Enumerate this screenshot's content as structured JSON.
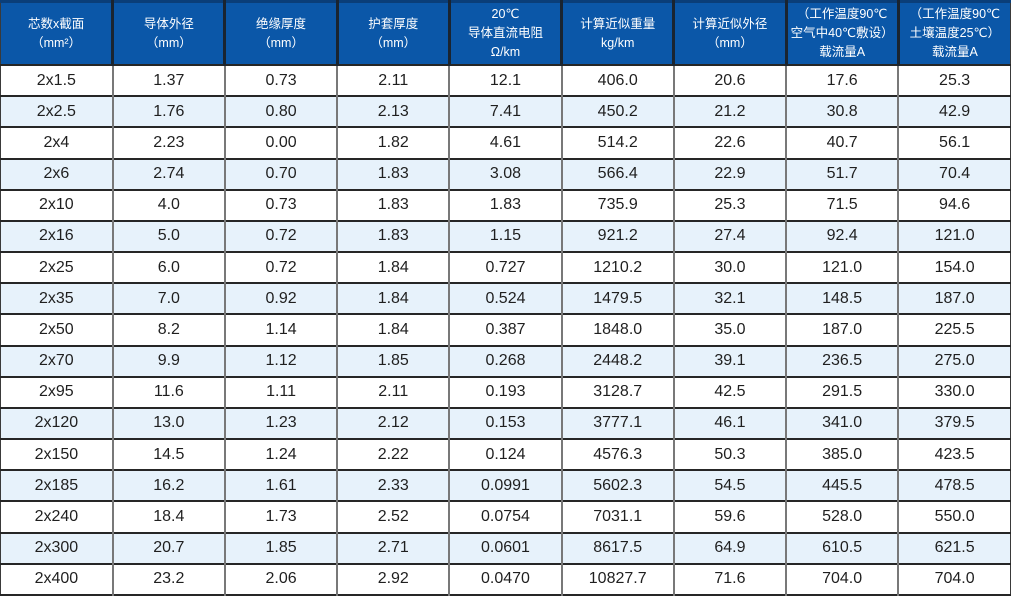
{
  "colors": {
    "header_bg": "#0b57a8",
    "header_text": "#ffffff",
    "header_separator": "#1a2430",
    "top_border": "#0a3e79",
    "row_alt": "#e7f2fb",
    "row_white": "#ffffff",
    "grid_vertical": "#787878",
    "grid_horizontal": "#262626",
    "cell_text": "#1f1f1f"
  },
  "chart_data": {
    "type": "table",
    "title": "",
    "columns": [
      {
        "label": "芯数x截面（mm²）",
        "lines": [
          "芯数x截面",
          "（mm²）"
        ]
      },
      {
        "label": "导体外径（mm）",
        "lines": [
          "导体外径",
          "（mm）"
        ]
      },
      {
        "label": "绝缘厚度（mm）",
        "lines": [
          "绝缘厚度",
          "（mm）"
        ]
      },
      {
        "label": "护套厚度（mm）",
        "lines": [
          "护套厚度",
          "（mm）"
        ]
      },
      {
        "label": "20℃导体直流电阻Ω/km",
        "lines": [
          "20℃",
          "导体直流电阻",
          "Ω/km"
        ]
      },
      {
        "label": "计算近似重量kg/km",
        "lines": [
          "计算近似重量",
          "kg/km"
        ]
      },
      {
        "label": "计算近似外径（mm）",
        "lines": [
          "计算近似外径",
          "（mm）"
        ]
      },
      {
        "label": "（工作温度90℃空气中40℃敷设）载流量A",
        "lines": [
          "（工作温度90℃",
          "空气中40℃敷设）",
          "载流量A"
        ]
      },
      {
        "label": "（工作温度90℃土壤温度25℃）载流量A",
        "lines": [
          "（工作温度90℃",
          "土壤温度25℃）",
          "载流量A"
        ]
      }
    ],
    "rows": [
      [
        "2x1.5",
        "1.37",
        "0.73",
        "2.11",
        "12.1",
        "406.0",
        "20.6",
        "17.6",
        "25.3"
      ],
      [
        "2x2.5",
        "1.76",
        "0.80",
        "2.13",
        "7.41",
        "450.2",
        "21.2",
        "30.8",
        "42.9"
      ],
      [
        "2x4",
        "2.23",
        "0.00",
        "1.82",
        "4.61",
        "514.2",
        "22.6",
        "40.7",
        "56.1"
      ],
      [
        "2x6",
        "2.74",
        "0.70",
        "1.83",
        "3.08",
        "566.4",
        "22.9",
        "51.7",
        "70.4"
      ],
      [
        "2x10",
        "4.0",
        "0.73",
        "1.83",
        "1.83",
        "735.9",
        "25.3",
        "71.5",
        "94.6"
      ],
      [
        "2x16",
        "5.0",
        "0.72",
        "1.83",
        "1.15",
        "921.2",
        "27.4",
        "92.4",
        "121.0"
      ],
      [
        "2x25",
        "6.0",
        "0.72",
        "1.84",
        "0.727",
        "1210.2",
        "30.0",
        "121.0",
        "154.0"
      ],
      [
        "2x35",
        "7.0",
        "0.92",
        "1.84",
        "0.524",
        "1479.5",
        "32.1",
        "148.5",
        "187.0"
      ],
      [
        "2x50",
        "8.2",
        "1.14",
        "1.84",
        "0.387",
        "1848.0",
        "35.0",
        "187.0",
        "225.5"
      ],
      [
        "2x70",
        "9.9",
        "1.12",
        "1.85",
        "0.268",
        "2448.2",
        "39.1",
        "236.5",
        "275.0"
      ],
      [
        "2x95",
        "11.6",
        "1.11",
        "2.11",
        "0.193",
        "3128.7",
        "42.5",
        "291.5",
        "330.0"
      ],
      [
        "2x120",
        "13.0",
        "1.23",
        "2.12",
        "0.153",
        "3777.1",
        "46.1",
        "341.0",
        "379.5"
      ],
      [
        "2x150",
        "14.5",
        "1.24",
        "2.22",
        "0.124",
        "4576.3",
        "50.3",
        "385.0",
        "423.5"
      ],
      [
        "2x185",
        "16.2",
        "1.61",
        "2.33",
        "0.0991",
        "5602.3",
        "54.5",
        "445.5",
        "478.5"
      ],
      [
        "2x240",
        "18.4",
        "1.73",
        "2.52",
        "0.0754",
        "7031.1",
        "59.6",
        "528.0",
        "550.0"
      ],
      [
        "2x300",
        "20.7",
        "1.85",
        "2.71",
        "0.0601",
        "8617.5",
        "64.9",
        "610.5",
        "621.5"
      ],
      [
        "2x400",
        "23.2",
        "2.06",
        "2.92",
        "0.0470",
        "10827.7",
        "71.6",
        "704.0",
        "704.0"
      ]
    ]
  }
}
